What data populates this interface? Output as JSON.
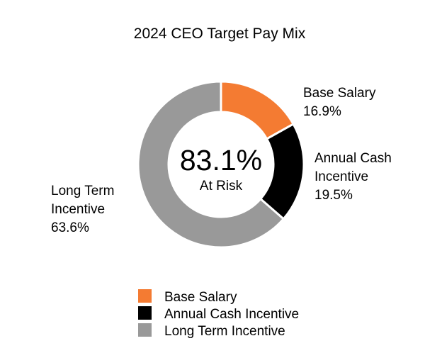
{
  "chart_data": {
    "type": "pie",
    "title": "2024 CEO Target Pay Mix",
    "center": {
      "value": "83.1%",
      "label": "At Risk"
    },
    "slices": [
      {
        "name": "Base Salary",
        "value": 16.9,
        "value_label": "16.9%",
        "color": "#f47b32",
        "label_lines": [
          "Base Salary",
          "16.9%"
        ]
      },
      {
        "name": "Annual Cash Incentive",
        "value": 19.5,
        "value_label": "19.5%",
        "color": "#000000",
        "label_lines": [
          "Annual Cash",
          "Incentive",
          "19.5%"
        ]
      },
      {
        "name": "Long Term Incentive",
        "value": 63.6,
        "value_label": "63.6%",
        "color": "#999999",
        "label_lines": [
          "Long Term",
          "Incentive",
          "63.6%"
        ]
      }
    ],
    "legend": [
      "Base Salary",
      "Annual Cash Incentive",
      "Long Term Incentive"
    ],
    "legend_position": "bottom"
  }
}
